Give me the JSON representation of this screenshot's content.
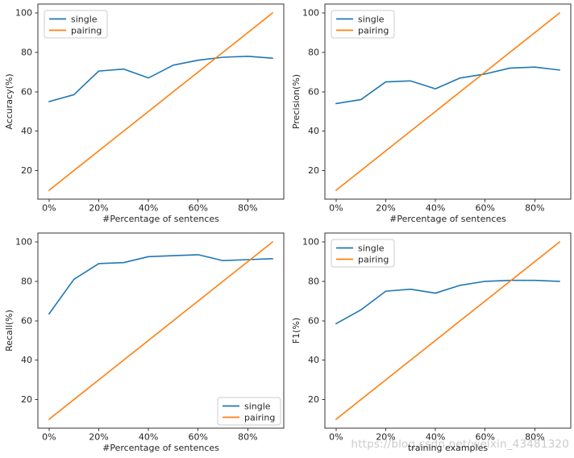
{
  "figure": {
    "background": "#ffffff",
    "watermark": {
      "text": "https://blog.csdn.net/weixin_43481320",
      "color": "#cbcbcb"
    },
    "axis_color": "#333333",
    "legend_border_color": "#cccccc"
  },
  "chart_data": [
    {
      "type": "line",
      "title": "",
      "xlabel": "#Percentage of sentences",
      "ylabel": "Accuracy(%)",
      "x": [
        0,
        10,
        20,
        30,
        40,
        50,
        60,
        70,
        80,
        90
      ],
      "x_tick_values": [
        0,
        20,
        40,
        60,
        80
      ],
      "x_tick_labels": [
        "0%",
        "20%",
        "40%",
        "60%",
        "80%"
      ],
      "y_tick_values": [
        20,
        40,
        60,
        80,
        100
      ],
      "xlim": [
        -4.5,
        94.5
      ],
      "ylim": [
        5.5,
        104.5
      ],
      "grid": false,
      "legend_position": "upper-left",
      "series": [
        {
          "name": "single",
          "color": "#1f77b4",
          "values": [
            55,
            58.5,
            70.5,
            71.5,
            67,
            73.5,
            76,
            77.5,
            78,
            77
          ]
        },
        {
          "name": "pairing",
          "color": "#ff7f0e",
          "values": [
            10,
            20,
            30,
            40,
            50,
            60,
            70,
            80,
            90,
            100
          ]
        }
      ]
    },
    {
      "type": "line",
      "title": "",
      "xlabel": "#Percentage of sentences",
      "ylabel": "Precision(%)",
      "x": [
        0,
        10,
        20,
        30,
        40,
        50,
        60,
        70,
        80,
        90
      ],
      "x_tick_values": [
        0,
        20,
        40,
        60,
        80
      ],
      "x_tick_labels": [
        "0%",
        "20%",
        "40%",
        "60%",
        "80%"
      ],
      "y_tick_values": [
        20,
        40,
        60,
        80,
        100
      ],
      "xlim": [
        -4.5,
        94.5
      ],
      "ylim": [
        5.5,
        104.5
      ],
      "grid": false,
      "legend_position": "upper-left",
      "series": [
        {
          "name": "single",
          "color": "#1f77b4",
          "values": [
            54,
            56,
            65,
            65.5,
            61.5,
            67,
            69,
            72,
            72.5,
            71
          ]
        },
        {
          "name": "pairing",
          "color": "#ff7f0e",
          "values": [
            10,
            20,
            30,
            40,
            50,
            60,
            70,
            80,
            90,
            100
          ]
        }
      ]
    },
    {
      "type": "line",
      "title": "",
      "xlabel": "#Percentage of sentences",
      "ylabel": "Recall(%)",
      "x": [
        0,
        10,
        20,
        30,
        40,
        50,
        60,
        70,
        80,
        90
      ],
      "x_tick_values": [
        0,
        20,
        40,
        60,
        80
      ],
      "x_tick_labels": [
        "0%",
        "20%",
        "40%",
        "60%",
        "80%"
      ],
      "y_tick_values": [
        20,
        40,
        60,
        80,
        100
      ],
      "xlim": [
        -4.5,
        94.5
      ],
      "ylim": [
        5.5,
        104.5
      ],
      "grid": false,
      "legend_position": "lower-right",
      "series": [
        {
          "name": "single",
          "color": "#1f77b4",
          "values": [
            63.5,
            81,
            89,
            89.5,
            92.5,
            93,
            93.5,
            90.5,
            91,
            91.5
          ]
        },
        {
          "name": "pairing",
          "color": "#ff7f0e",
          "values": [
            10,
            20,
            30,
            40,
            50,
            60,
            70,
            80,
            90,
            100
          ]
        }
      ]
    },
    {
      "type": "line",
      "title": "",
      "xlabel": "training examples",
      "ylabel": "F1(%)",
      "x": [
        0,
        10,
        20,
        30,
        40,
        50,
        60,
        70,
        80,
        90
      ],
      "x_tick_values": [
        0,
        20,
        40,
        60,
        80
      ],
      "x_tick_labels": [
        "0%",
        "20%",
        "40%",
        "60%",
        "80%"
      ],
      "y_tick_values": [
        20,
        40,
        60,
        80,
        100
      ],
      "xlim": [
        -4.5,
        94.5
      ],
      "ylim": [
        5.5,
        104.5
      ],
      "grid": false,
      "legend_position": "upper-left",
      "series": [
        {
          "name": "single",
          "color": "#1f77b4",
          "values": [
            58.5,
            65.5,
            75,
            76,
            74,
            78,
            80,
            80.5,
            80.5,
            80
          ]
        },
        {
          "name": "pairing",
          "color": "#ff7f0e",
          "values": [
            10,
            20,
            30,
            40,
            50,
            60,
            70,
            80,
            90,
            100
          ]
        }
      ]
    }
  ]
}
